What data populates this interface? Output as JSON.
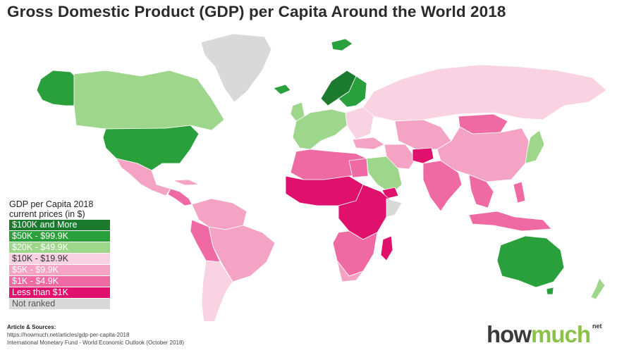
{
  "title": "Gross Domestic Product (GDP) per Capita Around the World 2018",
  "legend": {
    "heading_line1": "GDP per Capita 2018",
    "heading_line2": "current prices (in $)",
    "items": [
      {
        "label": "$100K and More",
        "color": "#1b7a2e",
        "text_color": "#ffffff"
      },
      {
        "label": "$50K - $99.9K",
        "color": "#2aa03c",
        "text_color": "#ffffff"
      },
      {
        "label": "$20K - $49.9K",
        "color": "#9ed68c",
        "text_color": "#ffffff"
      },
      {
        "label": "$10K - $19.9K",
        "color": "#f9d3e2",
        "text_color": "#333333"
      },
      {
        "label": "$5K - $9.9K",
        "color": "#f5a3c4",
        "text_color": "#ffffff"
      },
      {
        "label": "$1K - $4.9K",
        "color": "#ef6aa3",
        "text_color": "#ffffff"
      },
      {
        "label": "Less than $1K",
        "color": "#e0106d",
        "text_color": "#ffffff"
      },
      {
        "label": "Not ranked",
        "color": "#d9d9d9",
        "text_color": "#555555"
      }
    ]
  },
  "sources": {
    "heading": "Article & Sources:",
    "line1": "https://howmuch.net/articles/gdp-per-capita-2018",
    "line2": "International Monetary Fund - World Economic Outlook (October 2018)"
  },
  "logo": {
    "part1": "how",
    "part2": "much",
    "suffix": "net"
  }
}
